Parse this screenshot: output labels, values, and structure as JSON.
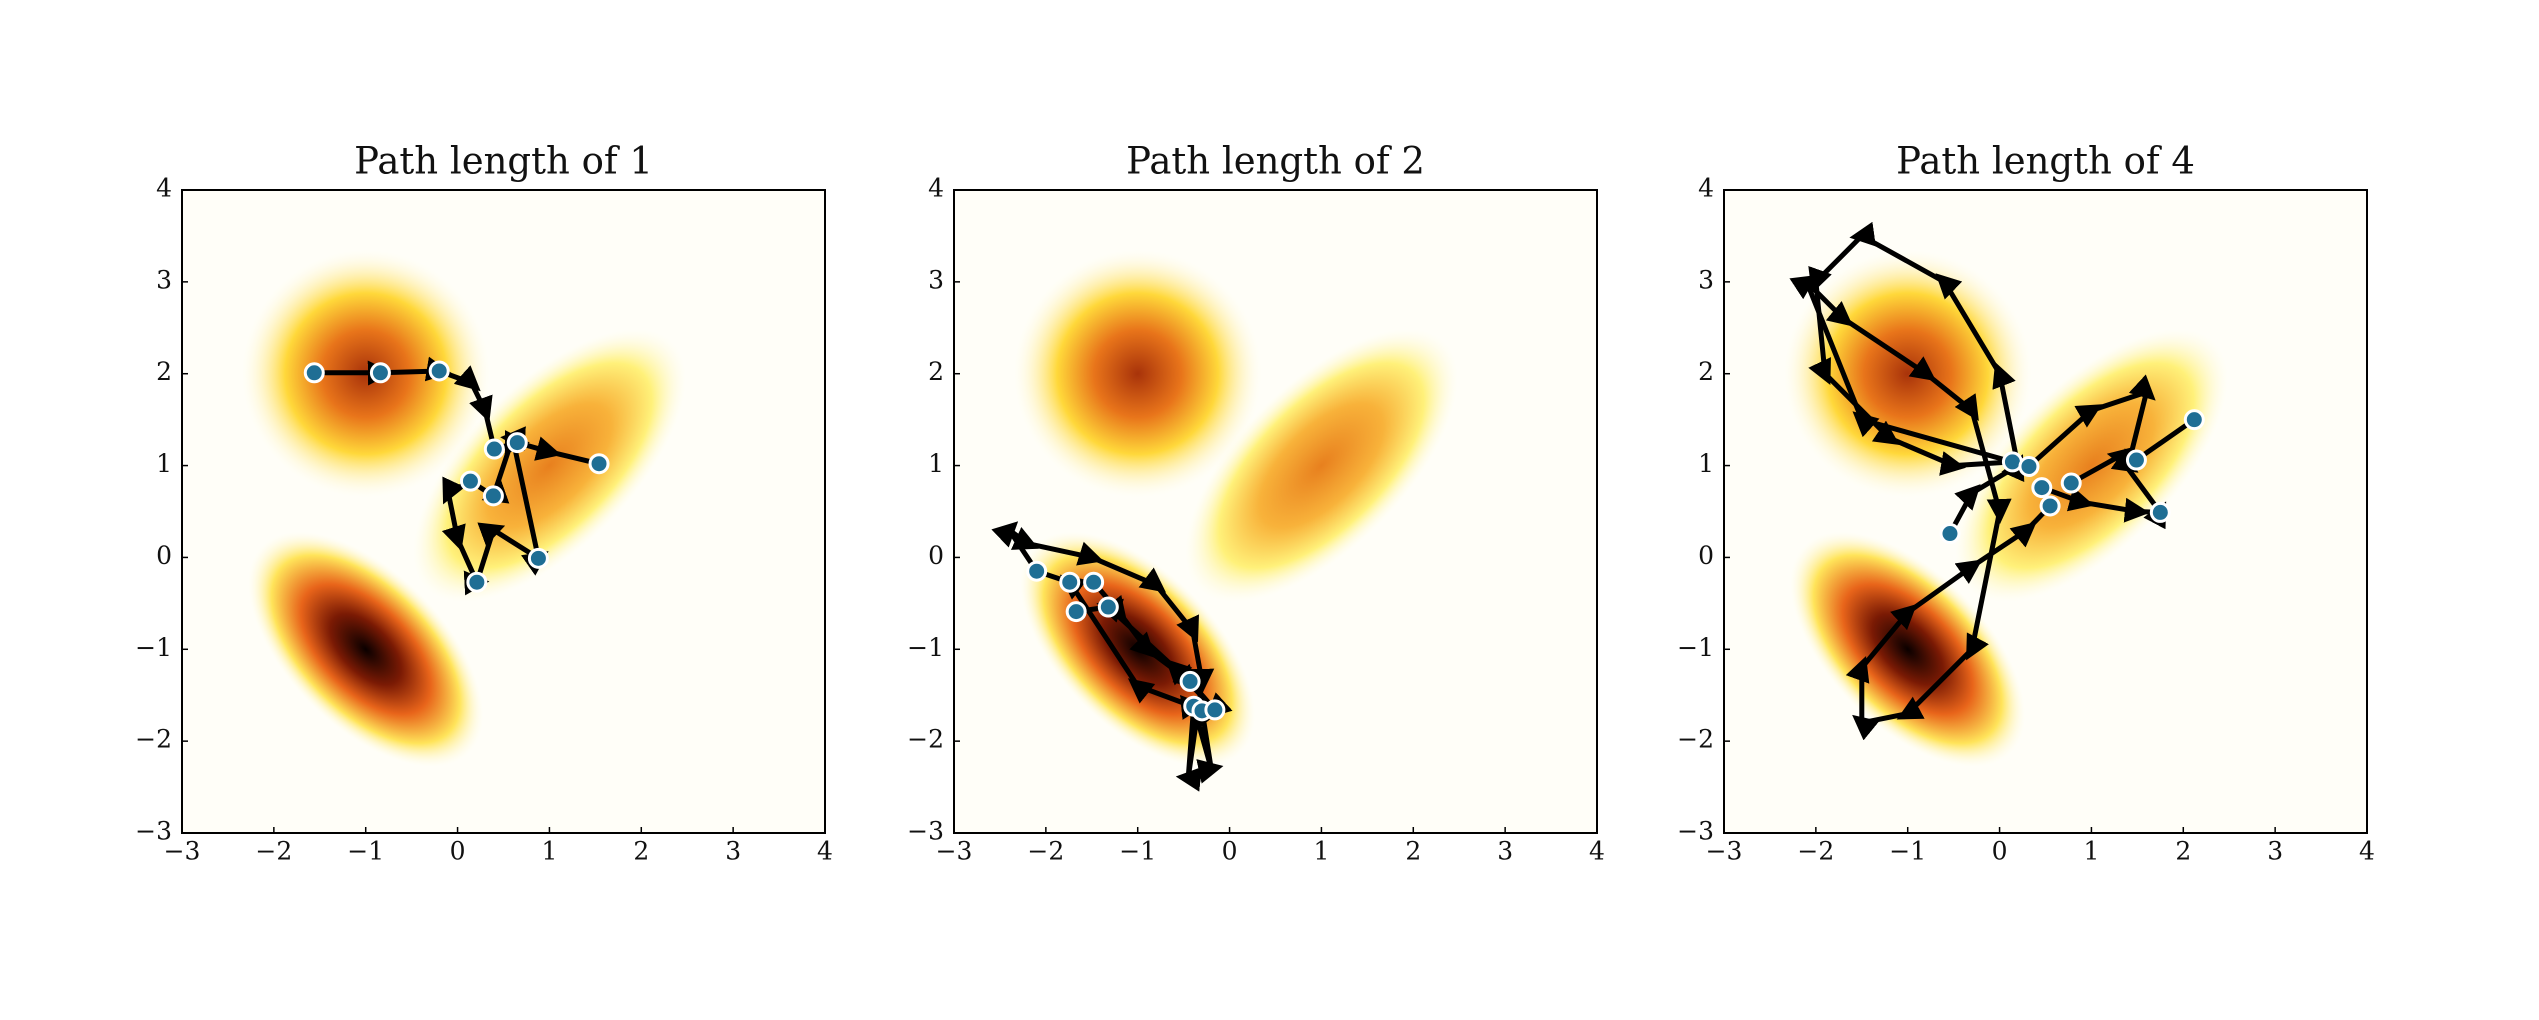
{
  "chart_data": [
    {
      "type": "scatter",
      "title": "Path length of 1",
      "xlim": [
        -3,
        4
      ],
      "ylim": [
        -3,
        4
      ],
      "xticks": [
        {
          "value": -3,
          "label": "−3"
        },
        {
          "value": -2,
          "label": "−2"
        },
        {
          "value": -1,
          "label": "−1"
        },
        0,
        1,
        2,
        3,
        4
      ],
      "yticks": [
        {
          "value": -3,
          "label": "−3"
        },
        {
          "value": -2,
          "label": "−2"
        },
        {
          "value": -1,
          "label": "−1"
        },
        0,
        1,
        2,
        3,
        4
      ],
      "color": "#1f6e94",
      "line_color": "#000000",
      "points": {
        "x": [
          -1.56,
          -0.84,
          -0.2,
          0.4,
          0.65,
          1.54,
          0.14,
          0.39,
          0.21,
          0.88
        ],
        "y": [
          2.01,
          2.01,
          2.03,
          1.18,
          1.25,
          1.02,
          0.83,
          0.67,
          -0.27,
          -0.01
        ]
      },
      "paths": [
        {
          "x": [
            -1.56,
            -0.84,
            -0.2,
            0.15,
            0.3,
            0.4
          ],
          "y": [
            2.01,
            2.01,
            2.03,
            1.9,
            1.6,
            1.18
          ]
        },
        {
          "x": [
            0.4,
            0.65,
            1.0,
            1.54
          ],
          "y": [
            1.18,
            1.25,
            1.15,
            1.02
          ]
        },
        {
          "x": [
            0.14,
            -0.1,
            0.0,
            0.21,
            0.39,
            0.88,
            0.6,
            0.39,
            0.14
          ],
          "y": [
            0.83,
            0.7,
            0.2,
            -0.27,
            0.3,
            -0.01,
            1.3,
            0.67,
            0.83
          ]
        }
      ]
    },
    {
      "type": "scatter",
      "title": "Path length of 2",
      "xlim": [
        -3,
        4
      ],
      "ylim": [
        -3,
        4
      ],
      "xticks": [
        {
          "value": -3,
          "label": "−3"
        },
        {
          "value": -2,
          "label": "−2"
        },
        {
          "value": -1,
          "label": "−1"
        },
        0,
        1,
        2,
        3,
        4
      ],
      "yticks": [
        {
          "value": -3,
          "label": "−3"
        },
        {
          "value": -2,
          "label": "−2"
        },
        {
          "value": -1,
          "label": "−1"
        },
        0,
        1,
        2,
        3,
        4
      ],
      "color": "#1f6e94",
      "line_color": "#000000",
      "points": {
        "x": [
          -2.1,
          -1.74,
          -1.48,
          -1.67,
          -1.32,
          -0.43,
          -0.39,
          -0.3,
          -0.16
        ],
        "y": [
          -0.15,
          -0.27,
          -0.27,
          -0.59,
          -0.54,
          -1.35,
          -1.62,
          -1.67,
          -1.66
        ]
      },
      "paths": [
        {
          "x": [
            -2.1,
            -2.4,
            -2.2,
            -1.5,
            -0.8,
            -0.4,
            -0.3,
            -0.45,
            -0.39,
            -0.2,
            -0.3,
            -1.0,
            -1.74,
            -2.1
          ],
          "y": [
            -0.15,
            0.3,
            0.15,
            0.0,
            -0.3,
            -0.8,
            -1.35,
            -2.4,
            -1.62,
            -2.3,
            -1.66,
            -1.4,
            -0.27,
            -0.15
          ]
        },
        {
          "x": [
            -1.48,
            -1.2,
            -0.9,
            -0.43,
            -0.16,
            -0.6,
            -1.32,
            -1.67
          ],
          "y": [
            -0.27,
            -0.6,
            -1.0,
            -1.35,
            -1.66,
            -1.2,
            -0.54,
            -0.59
          ]
        }
      ]
    },
    {
      "type": "scatter",
      "title": "Path length of 4",
      "xlim": [
        -3,
        4
      ],
      "ylim": [
        -3,
        4
      ],
      "xticks": [
        {
          "value": -3,
          "label": "−3"
        },
        {
          "value": -2,
          "label": "−2"
        },
        {
          "value": -1,
          "label": "−1"
        },
        0,
        1,
        2,
        3,
        4
      ],
      "yticks": [
        {
          "value": -3,
          "label": "−3"
        },
        {
          "value": -2,
          "label": "−2"
        },
        {
          "value": -1,
          "label": "−1"
        },
        0,
        1,
        2,
        3,
        4
      ],
      "color": "#1f6e94",
      "line_color": "#000000",
      "points": {
        "x": [
          -0.54,
          0.14,
          0.32,
          0.46,
          0.55,
          0.78,
          1.49,
          2.12,
          1.75
        ],
        "y": [
          0.26,
          1.04,
          0.99,
          0.76,
          0.56,
          0.81,
          1.06,
          1.5,
          0.49
        ]
      },
      "paths": [
        {
          "x": [
            -0.54,
            -0.3,
            0.2,
            0.0,
            -0.6,
            -1.5,
            -2.0,
            -1.9,
            -1.2,
            -0.5,
            0.14
          ],
          "y": [
            0.26,
            0.7,
            1.0,
            2.0,
            3.0,
            3.5,
            3.0,
            2.0,
            1.3,
            1.0,
            1.04
          ]
        },
        {
          "x": [
            0.14,
            -1.5,
            -2.1,
            -1.7,
            -0.8,
            -0.3,
            0.0,
            -0.3,
            -1.0,
            -1.5,
            -1.5,
            -1.0,
            -0.3,
            0.3,
            0.55
          ],
          "y": [
            1.04,
            1.5,
            3.0,
            2.6,
            2.0,
            1.6,
            0.5,
            -1.0,
            -1.7,
            -1.8,
            -1.2,
            -0.6,
            -0.1,
            0.3,
            0.56
          ]
        },
        {
          "x": [
            0.32,
            1.0,
            1.6,
            1.4,
            2.12
          ],
          "y": [
            0.99,
            1.6,
            1.8,
            1.0,
            1.5
          ]
        },
        {
          "x": [
            0.46,
            0.9,
            1.5,
            1.75,
            1.3,
            0.78
          ],
          "y": [
            0.76,
            0.6,
            0.5,
            0.49,
            1.1,
            0.81
          ]
        }
      ]
    }
  ]
}
